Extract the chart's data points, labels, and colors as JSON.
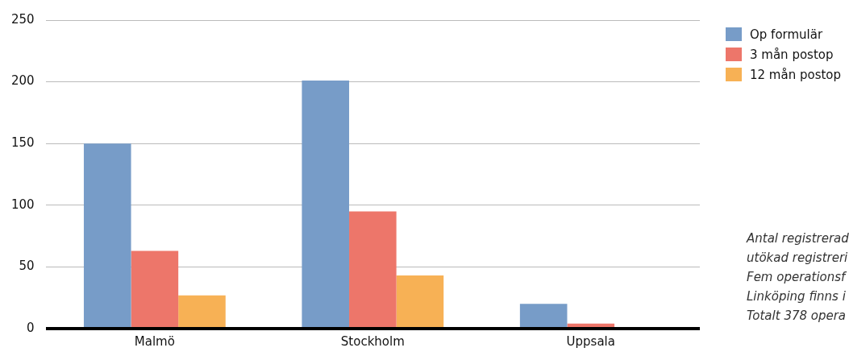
{
  "chart_data": {
    "type": "bar",
    "categories": [
      "Malmö",
      "Stockholm",
      "Uppsala"
    ],
    "series": [
      {
        "name": "Op formulär",
        "color": "#779cc8",
        "values": [
          150,
          201,
          20
        ]
      },
      {
        "name": "3 mån postop",
        "color": "#ed766a",
        "values": [
          63,
          95,
          4
        ]
      },
      {
        "name": "12 mån postop",
        "color": "#f7b155",
        "values": [
          27,
          43,
          0
        ]
      }
    ],
    "ylim": [
      0,
      250
    ],
    "yticks": [
      0,
      50,
      100,
      150,
      200,
      250
    ],
    "grid": "y",
    "legend": "right",
    "annotations": [
      "Antal registrerad",
      "utökad registreri",
      "Fem operationsf",
      "Linköping finns i",
      "Totalt 378 opera"
    ]
  }
}
